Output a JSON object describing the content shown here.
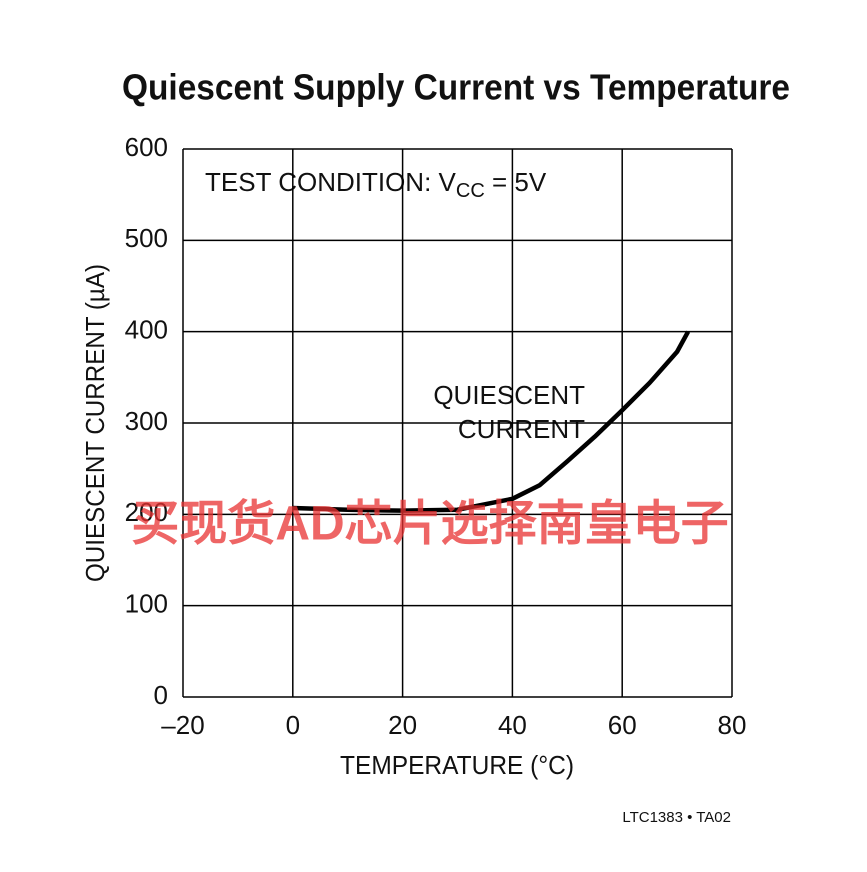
{
  "chart_data": {
    "type": "line",
    "title": "Quiescent Supply Current vs Temperature",
    "x_label": "TEMPERATURE (°C)",
    "y_label": "QUIESCENT CURRENT (µA)",
    "annotation": {
      "prefix": "TEST CONDITION: V",
      "subscript": "CC",
      "suffix": " = 5V"
    },
    "curve_label": [
      "QUIESCENT",
      "CURRENT"
    ],
    "footer": "LTC1383 • TA02",
    "watermark": "买现货AD芯片选择南皇电子",
    "x": [
      0,
      10,
      20,
      30,
      40,
      45,
      50,
      55,
      60,
      65,
      70,
      72
    ],
    "values": [
      207,
      205,
      204,
      205,
      217,
      232,
      258,
      285,
      314,
      344,
      378,
      400
    ],
    "color": "#000000",
    "xlim": [
      -20,
      80
    ],
    "xticks": [
      {
        "value": -20,
        "label": "–20"
      },
      0,
      20,
      40,
      60,
      80
    ],
    "ylim": [
      0,
      600
    ],
    "yticks": [
      0,
      100,
      200,
      300,
      400,
      500,
      600
    ],
    "grid": true
  }
}
